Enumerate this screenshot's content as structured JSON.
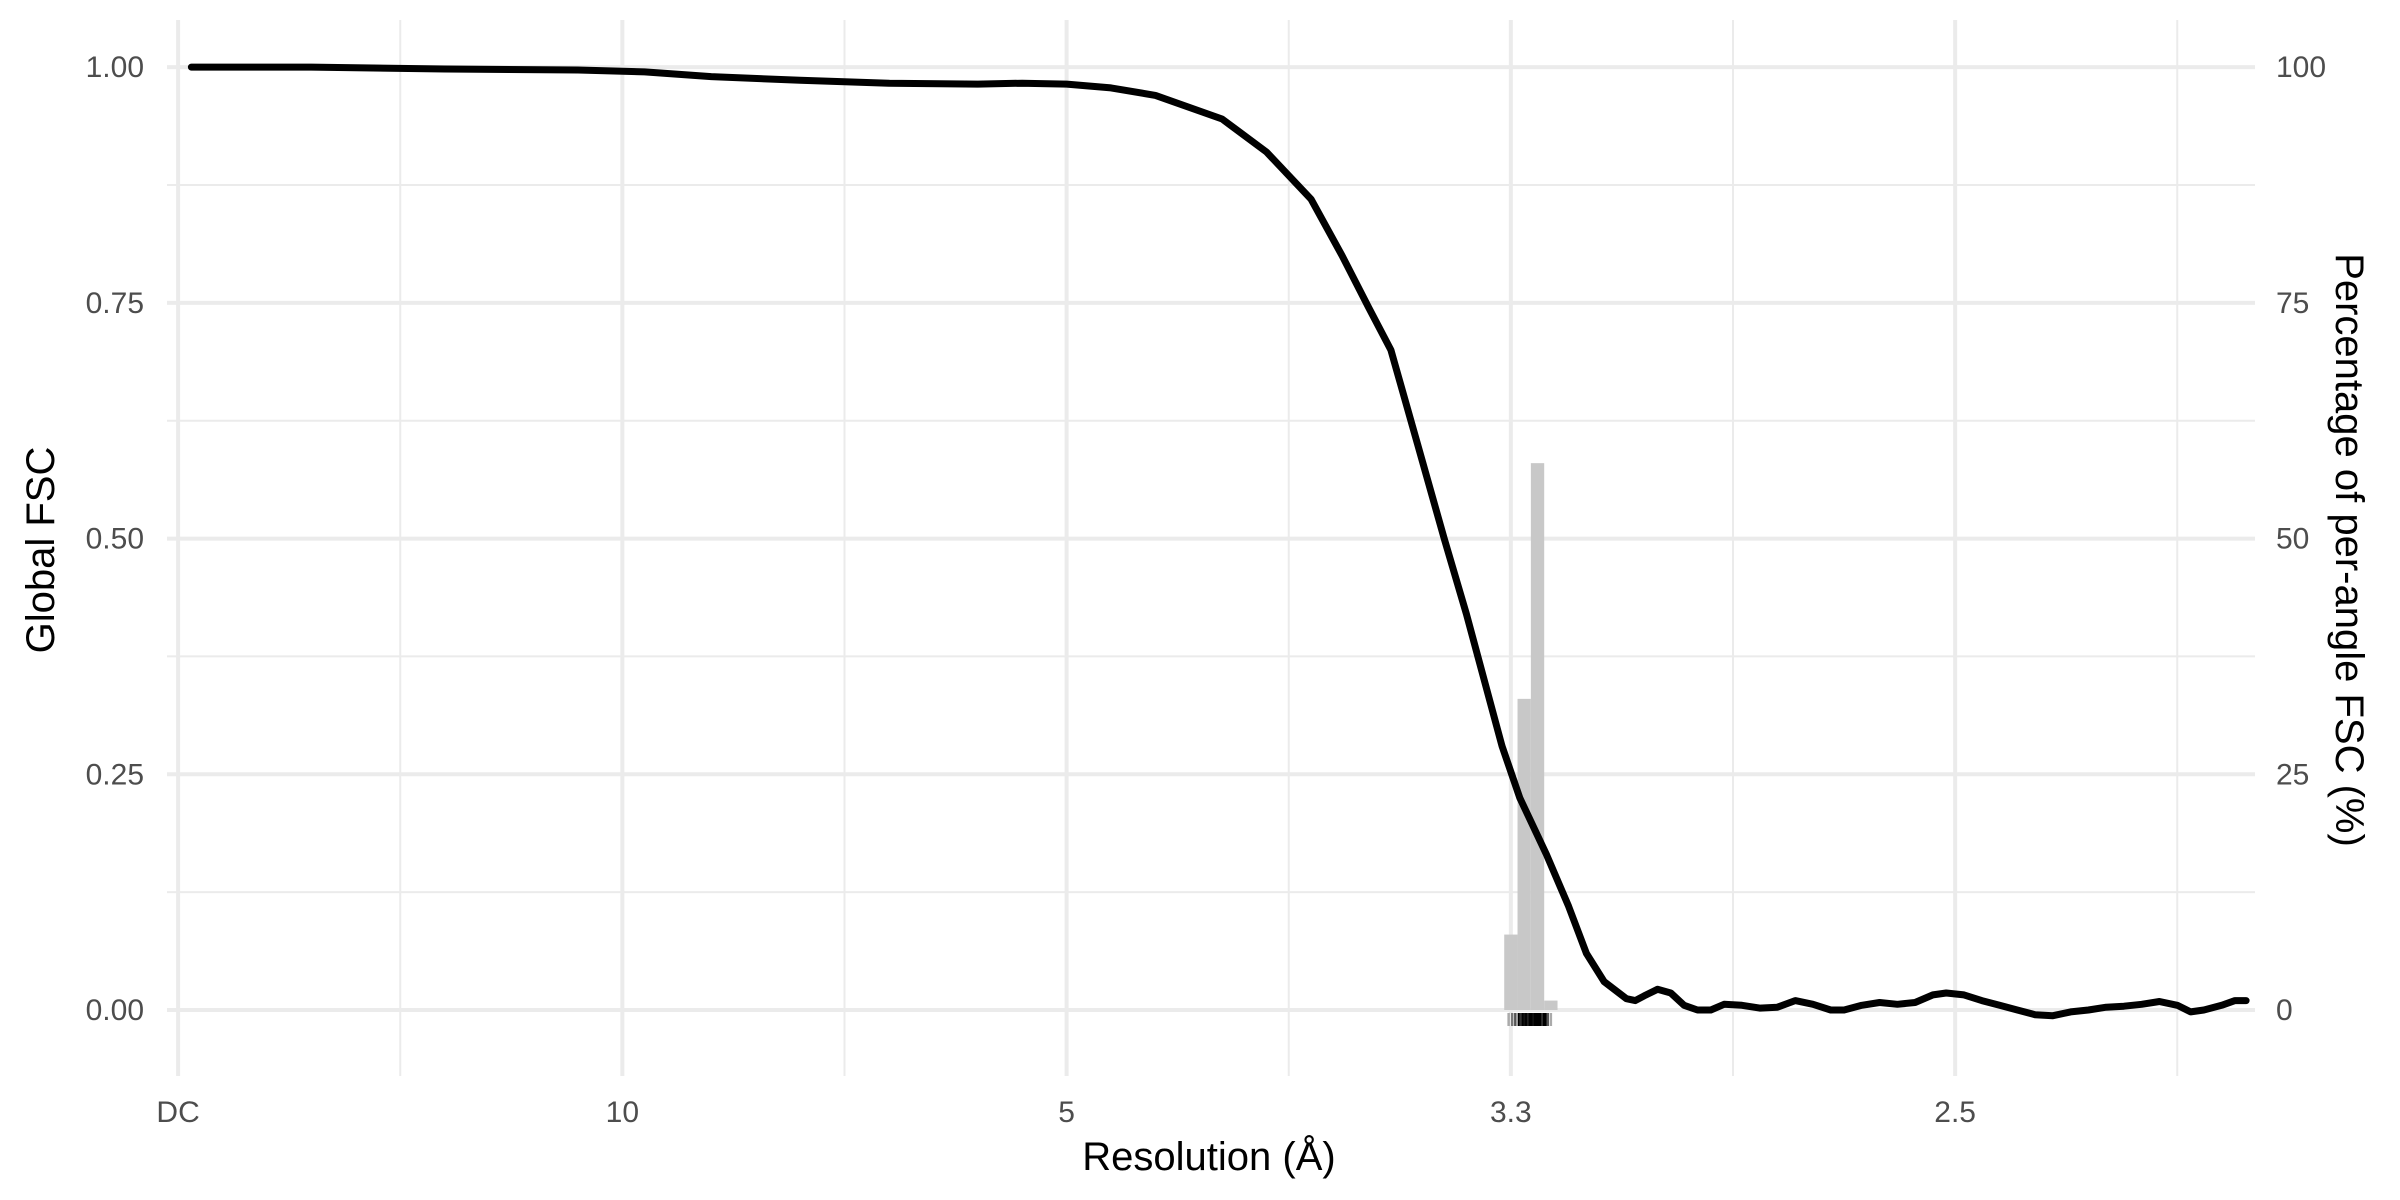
{
  "chart_data": {
    "type": "line",
    "title": "",
    "xlabel": "Resolution (Å)",
    "ylabel": "Global FSC",
    "y2label": "Percentage of per-angle FSC (%)",
    "x_unit": "spatial frequency (1/Å)",
    "xlim": [
      -0.0025,
      0.4675
    ],
    "ylim": [
      -0.07,
      1.05
    ],
    "y2lim": [
      -7,
      105
    ],
    "x_ticks": [
      {
        "value": 0.0,
        "label": "DC"
      },
      {
        "value": 0.1,
        "label": "10"
      },
      {
        "value": 0.2,
        "label": "5"
      },
      {
        "value": 0.3,
        "label": "3.3"
      },
      {
        "value": 0.4,
        "label": "2.5"
      }
    ],
    "x_minor_ticks": [
      0.05,
      0.15,
      0.25,
      0.35,
      0.45
    ],
    "y_ticks": [
      {
        "value": 0.0,
        "label": "0.00"
      },
      {
        "value": 0.25,
        "label": "0.25"
      },
      {
        "value": 0.5,
        "label": "0.50"
      },
      {
        "value": 0.75,
        "label": "0.75"
      },
      {
        "value": 1.0,
        "label": "1.00"
      }
    ],
    "y_minor_ticks": [
      0.125,
      0.375,
      0.625,
      0.875
    ],
    "y2_ticks": [
      {
        "value": 0,
        "label": "0"
      },
      {
        "value": 25,
        "label": "25"
      },
      {
        "value": 50,
        "label": "50"
      },
      {
        "value": 75,
        "label": "75"
      },
      {
        "value": 100,
        "label": "100"
      }
    ],
    "grid": true,
    "series": [
      {
        "color": "#000000",
        "points": [
          [
            0.003,
            1.0
          ],
          [
            0.03,
            1.0
          ],
          [
            0.06,
            0.998
          ],
          [
            0.09,
            0.997
          ],
          [
            0.105,
            0.995
          ],
          [
            0.12,
            0.99
          ],
          [
            0.14,
            0.986
          ],
          [
            0.16,
            0.983
          ],
          [
            0.18,
            0.982
          ],
          [
            0.19,
            0.983
          ],
          [
            0.2,
            0.982
          ],
          [
            0.21,
            0.978
          ],
          [
            0.22,
            0.97
          ],
          [
            0.235,
            0.945
          ],
          [
            0.245,
            0.91
          ],
          [
            0.255,
            0.86
          ],
          [
            0.262,
            0.8
          ],
          [
            0.268,
            0.745
          ],
          [
            0.273,
            0.7
          ],
          [
            0.279,
            0.6
          ],
          [
            0.285,
            0.5
          ],
          [
            0.29,
            0.42
          ],
          [
            0.294,
            0.35
          ],
          [
            0.298,
            0.28
          ],
          [
            0.302,
            0.225
          ],
          [
            0.308,
            0.165
          ],
          [
            0.313,
            0.11
          ],
          [
            0.317,
            0.06
          ],
          [
            0.321,
            0.03
          ],
          [
            0.326,
            0.012
          ],
          [
            0.328,
            0.01
          ],
          [
            0.33,
            0.015
          ],
          [
            0.333,
            0.022
          ],
          [
            0.336,
            0.018
          ],
          [
            0.339,
            0.005
          ],
          [
            0.342,
            0.0
          ],
          [
            0.345,
            0.0
          ],
          [
            0.348,
            0.006
          ],
          [
            0.352,
            0.005
          ],
          [
            0.356,
            0.002
          ],
          [
            0.36,
            0.003
          ],
          [
            0.364,
            0.01
          ],
          [
            0.368,
            0.006
          ],
          [
            0.372,
            0.0
          ],
          [
            0.375,
            0.0
          ],
          [
            0.379,
            0.005
          ],
          [
            0.383,
            0.008
          ],
          [
            0.387,
            0.006
          ],
          [
            0.391,
            0.008
          ],
          [
            0.395,
            0.016
          ],
          [
            0.398,
            0.018
          ],
          [
            0.402,
            0.016
          ],
          [
            0.406,
            0.01
          ],
          [
            0.41,
            0.005
          ],
          [
            0.414,
            0.0
          ],
          [
            0.418,
            -0.005
          ],
          [
            0.422,
            -0.006
          ],
          [
            0.426,
            -0.002
          ],
          [
            0.43,
            0.0
          ],
          [
            0.434,
            0.003
          ],
          [
            0.438,
            0.004
          ],
          [
            0.442,
            0.006
          ],
          [
            0.446,
            0.009
          ],
          [
            0.45,
            0.005
          ],
          [
            0.453,
            -0.002
          ],
          [
            0.456,
            0.0
          ],
          [
            0.46,
            0.005
          ],
          [
            0.463,
            0.01
          ],
          [
            0.4655,
            0.01
          ]
        ]
      }
    ],
    "histogram": {
      "color": "#c8c8c8",
      "axis": "y2",
      "bins": [
        {
          "x0": 0.2985,
          "x1": 0.3015,
          "value": 8
        },
        {
          "x0": 0.3015,
          "x1": 0.3045,
          "value": 33
        },
        {
          "x0": 0.3045,
          "x1": 0.3075,
          "value": 58
        },
        {
          "x0": 0.3075,
          "x1": 0.3105,
          "value": 1
        }
      ]
    },
    "rug": {
      "ticks": [
        {
          "x": 0.2995,
          "color": "#aaaaaa"
        },
        {
          "x": 0.3003,
          "color": "#777777"
        },
        {
          "x": 0.301,
          "color": "#555555"
        },
        {
          "x": 0.3018,
          "color": "#000000"
        },
        {
          "x": 0.3022,
          "color": "#333333"
        },
        {
          "x": 0.3027,
          "color": "#000000"
        },
        {
          "x": 0.3031,
          "color": "#111111"
        },
        {
          "x": 0.3035,
          "color": "#000000"
        },
        {
          "x": 0.3039,
          "color": "#222222"
        },
        {
          "x": 0.3043,
          "color": "#000000"
        },
        {
          "x": 0.3047,
          "color": "#000000"
        },
        {
          "x": 0.3051,
          "color": "#111111"
        },
        {
          "x": 0.3055,
          "color": "#000000"
        },
        {
          "x": 0.3059,
          "color": "#000000"
        },
        {
          "x": 0.3063,
          "color": "#000000"
        },
        {
          "x": 0.3067,
          "color": "#000000"
        },
        {
          "x": 0.3071,
          "color": "#333333"
        },
        {
          "x": 0.3075,
          "color": "#000000"
        },
        {
          "x": 0.3079,
          "color": "#000000"
        },
        {
          "x": 0.3083,
          "color": "#555555"
        },
        {
          "x": 0.309,
          "color": "#aaaaaa"
        }
      ]
    }
  }
}
